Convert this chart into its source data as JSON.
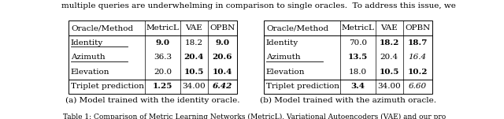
{
  "table_a": {
    "headers": [
      "Oracle/Method",
      "MetricL",
      "VAE",
      "OPBN"
    ],
    "rows": [
      [
        "Identity",
        "9.0",
        "18.2",
        "9.0"
      ],
      [
        "Azimuth",
        "36.3",
        "20.4",
        "20.6"
      ],
      [
        "Elevation",
        "20.0",
        "10.5",
        "10.4"
      ],
      [
        "Triplet prediction",
        "1.25",
        "34.00",
        "6.42"
      ]
    ],
    "bold": [
      [
        false,
        true,
        false,
        true
      ],
      [
        false,
        false,
        true,
        true
      ],
      [
        false,
        false,
        true,
        true
      ],
      [
        false,
        true,
        false,
        true
      ]
    ],
    "italic": [
      [
        false,
        false,
        false,
        false
      ],
      [
        false,
        false,
        false,
        false
      ],
      [
        false,
        false,
        false,
        false
      ],
      [
        false,
        false,
        false,
        true
      ]
    ],
    "underline_col0": [
      true,
      true,
      false,
      false
    ],
    "caption": "(a) Model trained with the identity oracle."
  },
  "table_b": {
    "headers": [
      "Oracle/Method",
      "MetricL",
      "VAE",
      "OPBN"
    ],
    "rows": [
      [
        "Identity",
        "70.0",
        "18.2",
        "18.7"
      ],
      [
        "Azimuth",
        "13.5",
        "20.4",
        "16.4"
      ],
      [
        "Elevation",
        "18.0",
        "10.5",
        "10.2"
      ],
      [
        "Triplet prediction",
        "3.4",
        "34.00",
        "6.60"
      ]
    ],
    "bold": [
      [
        false,
        false,
        true,
        true
      ],
      [
        false,
        true,
        false,
        false
      ],
      [
        false,
        false,
        true,
        true
      ],
      [
        false,
        true,
        false,
        false
      ]
    ],
    "italic": [
      [
        false,
        false,
        false,
        false
      ],
      [
        false,
        false,
        false,
        true
      ],
      [
        false,
        false,
        false,
        false
      ],
      [
        false,
        false,
        false,
        true
      ]
    ],
    "underline_col0": [
      false,
      true,
      false,
      false
    ],
    "caption": "(b) Model trained with the azimuth oracle."
  },
  "top_text": "multiple queries are underwhelming in comparison to single oracles.  To address this issue, we",
  "footer": "Table 1: Comparison of Metric Learning Networks (MetricL), Variational Autoencoders (VAE) and our pro",
  "bg_color": "#ffffff",
  "font_size": 7.5,
  "caption_font_size": 7.5,
  "footer_font_size": 6.5
}
